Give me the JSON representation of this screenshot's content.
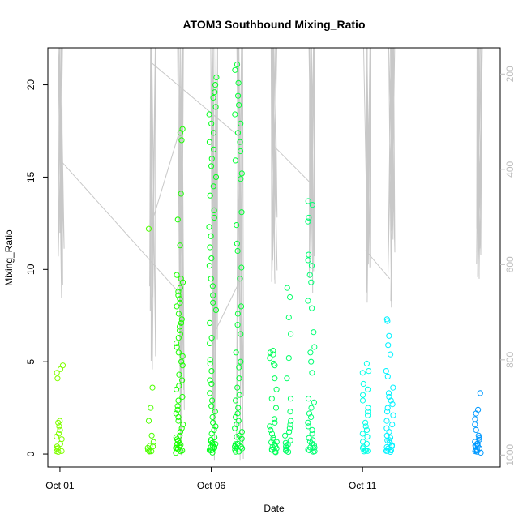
{
  "chart_data": {
    "type": "scatter",
    "title": "ATOM3 Southbound Mixing_Ratio",
    "xlabel": "Date",
    "ylabel": "Mixing_Ratio",
    "x_unit": "days (0 = Oct 01)",
    "xlim": [
      -0.4,
      14.55
    ],
    "ylim": [
      -0.7,
      22.0
    ],
    "x_ticks": [
      {
        "value": 0,
        "label": "Oct 01"
      },
      {
        "value": 5,
        "label": "Oct 06"
      },
      {
        "value": 10,
        "label": "Oct 11"
      }
    ],
    "y_ticks": [
      0,
      5,
      10,
      15,
      20
    ],
    "right_axis": {
      "label": "",
      "note": "pressure-like altitude axis drawn in light grey, increasing downward",
      "range": [
        1025,
        145
      ],
      "ticks": [
        200,
        400,
        600,
        800,
        1000
      ],
      "color": "#bdbdbd"
    },
    "grid": false,
    "point_style": "open-circle",
    "color_scale": "rainbow by date (yellow-green early → green → cyan → blue late)",
    "point_clusters": [
      {
        "x": 0.0,
        "color": "#80ff00",
        "values": [
          4.8,
          4.6,
          4.4,
          4.1,
          1.8,
          1.7,
          1.5,
          1.3,
          1.1,
          0.9,
          0.8,
          0.6,
          0.4,
          0.3,
          0.25,
          0.2,
          0.15,
          0.1
        ]
      },
      {
        "x": 3.0,
        "color": "#4dff00",
        "values": [
          12.2,
          3.6,
          2.5,
          1.8,
          1.0,
          0.7,
          0.5,
          0.4,
          0.3,
          0.25,
          0.2,
          0.15,
          0.1
        ]
      },
      {
        "x": 3.95,
        "color": "#1aff00",
        "values": [
          17.6,
          17.4,
          17.0,
          14.1,
          12.7,
          11.3,
          9.7,
          9.5,
          9.3,
          9.0,
          8.8,
          8.6,
          8.4,
          8.2,
          8.0,
          7.6,
          7.3,
          7.1,
          6.9,
          6.7,
          6.5,
          6.3,
          6.0,
          5.8,
          5.5,
          5.3,
          5.0,
          4.8,
          4.3,
          4.0,
          3.7,
          3.5,
          3.1,
          2.9,
          2.6,
          2.4,
          2.2,
          2.0,
          1.8,
          1.6,
          1.4,
          1.2,
          1.0,
          0.9,
          0.8,
          0.7,
          0.6,
          0.55,
          0.5,
          0.45,
          0.4,
          0.35,
          0.3,
          0.25,
          0.2,
          0.15,
          0.1
        ]
      },
      {
        "x": 5.05,
        "color": "#00ff1a",
        "values": [
          20.4,
          20.0,
          19.6,
          19.3,
          18.8,
          18.4,
          17.9,
          17.4,
          16.9,
          16.5,
          16.0,
          15.6,
          15.0,
          14.5,
          14.0,
          13.2,
          12.8,
          12.3,
          11.8,
          11.2,
          10.6,
          10.2,
          9.5,
          9.1,
          8.6,
          8.2,
          7.8,
          7.1,
          6.3,
          6.0,
          5.1,
          4.9,
          4.5,
          4.0,
          3.8,
          3.3,
          2.9,
          2.6,
          2.3,
          2.0,
          1.7,
          1.5,
          1.3,
          1.1,
          0.9,
          0.8,
          0.7,
          0.6,
          0.5,
          0.45,
          0.4,
          0.35,
          0.3,
          0.25,
          0.2,
          0.15,
          0.1
        ]
      },
      {
        "x": 5.9,
        "color": "#00ff33",
        "values": [
          21.1,
          20.8,
          20.1,
          19.4,
          18.9,
          18.4,
          17.9,
          17.4,
          16.9,
          16.4,
          15.9,
          15.2,
          14.9,
          13.1,
          12.4,
          11.4,
          11.0,
          10.1,
          9.5,
          8.0,
          7.6,
          7.0,
          6.5,
          5.5,
          5.0,
          4.7,
          4.1,
          3.6,
          3.2,
          2.9,
          2.5,
          2.2,
          2.0,
          1.8,
          1.6,
          1.4,
          1.2,
          1.0,
          0.9,
          0.8,
          0.7,
          0.6,
          0.5,
          0.45,
          0.4,
          0.35,
          0.3,
          0.25,
          0.2,
          0.15,
          0.1
        ]
      },
      {
        "x": 7.05,
        "color": "#00ff59",
        "values": [
          5.6,
          5.5,
          5.4,
          5.2,
          4.9,
          4.8,
          4.1,
          3.5,
          3.0,
          2.5,
          1.9,
          1.7,
          1.5,
          1.3,
          1.1,
          0.9,
          0.8,
          0.7,
          0.6,
          0.5,
          0.4,
          0.35,
          0.3,
          0.25,
          0.2,
          0.15,
          0.1
        ]
      },
      {
        "x": 7.55,
        "color": "#00ff66",
        "values": [
          9.0,
          8.5,
          7.4,
          6.5,
          5.2,
          4.1,
          3.0,
          2.3,
          1.8,
          1.6,
          1.4,
          1.2,
          1.0,
          0.8,
          0.6,
          0.5,
          0.4,
          0.3,
          0.2,
          0.15,
          0.1
        ]
      },
      {
        "x": 8.3,
        "color": "#00ff73",
        "values": [
          13.7,
          13.5,
          12.8,
          12.6,
          10.8,
          10.5,
          10.2,
          9.7,
          9.3,
          8.3,
          7.9,
          6.6,
          5.8,
          5.5,
          5.0,
          4.4,
          3.0,
          2.8,
          2.5,
          2.2,
          2.0,
          1.7,
          1.5,
          1.3,
          1.1,
          0.9,
          0.8,
          0.7,
          0.6,
          0.5,
          0.4,
          0.35,
          0.3,
          0.25,
          0.2,
          0.15,
          0.1
        ]
      },
      {
        "x": 10.1,
        "color": "#00ffe6",
        "values": [
          4.9,
          4.5,
          4.4,
          3.8,
          3.5,
          3.2,
          2.9,
          2.5,
          2.3,
          2.1,
          1.7,
          1.5,
          1.3,
          1.1,
          0.9,
          0.7,
          0.5,
          0.4,
          0.3,
          0.25,
          0.2,
          0.15,
          0.1
        ]
      },
      {
        "x": 10.9,
        "color": "#00f2ff",
        "values": [
          7.3,
          7.2,
          6.4,
          5.9,
          5.4,
          4.5,
          4.2,
          3.6,
          3.3,
          3.1,
          2.9,
          2.7,
          2.5,
          2.3,
          2.1,
          1.8,
          1.6,
          1.4,
          1.2,
          1.0,
          0.9,
          0.8,
          0.7,
          0.6,
          0.5,
          0.45,
          0.4,
          0.35,
          0.3,
          0.25,
          0.2,
          0.15,
          0.1
        ]
      },
      {
        "x": 13.8,
        "color": "#0099ff",
        "values": [
          3.3,
          2.4,
          2.2,
          1.9,
          1.6,
          1.3,
          1.0,
          0.9,
          0.8,
          0.7,
          0.6,
          0.55,
          0.5,
          0.45,
          0.4,
          0.35,
          0.3,
          0.25,
          0.2,
          0.15,
          0.12,
          0.1
        ]
      }
    ],
    "altitude_profiles": [
      {
        "x": 0.0,
        "p_top": 170,
        "p_bottom": 670
      },
      {
        "x": 3.0,
        "p_top": 175,
        "p_bottom": 820
      },
      {
        "x": 3.95,
        "p_top": 170,
        "p_bottom": 1000
      },
      {
        "x": 5.05,
        "p_top": 170,
        "p_bottom": 1010
      },
      {
        "x": 5.9,
        "p_top": 170,
        "p_bottom": 1010
      },
      {
        "x": 7.05,
        "p_top": 170,
        "p_bottom": 640
      },
      {
        "x": 8.3,
        "p_top": 170,
        "p_bottom": 660
      },
      {
        "x": 10.1,
        "p_top": 170,
        "p_bottom": 680
      },
      {
        "x": 10.9,
        "p_top": 170,
        "p_bottom": 690
      },
      {
        "x": 13.8,
        "p_top": 170,
        "p_bottom": 630
      }
    ],
    "altitude_transits": [
      [
        [
          0.0,
          380
        ],
        [
          3.95,
          660
        ]
      ],
      [
        [
          3.0,
          520
        ],
        [
          3.95,
          320
        ]
      ],
      [
        [
          3.0,
          175
        ],
        [
          5.9,
          330
        ]
      ],
      [
        [
          5.05,
          750
        ],
        [
          5.9,
          640
        ]
      ],
      [
        [
          7.05,
          350
        ],
        [
          8.3,
          430
        ]
      ],
      [
        [
          10.1,
          570
        ],
        [
          10.9,
          630
        ]
      ]
    ],
    "color_scale_stops": [
      "#80ff00",
      "#4dff00",
      "#1aff00",
      "#00ff1a",
      "#00ff59",
      "#00ffe6",
      "#0099ff"
    ]
  }
}
